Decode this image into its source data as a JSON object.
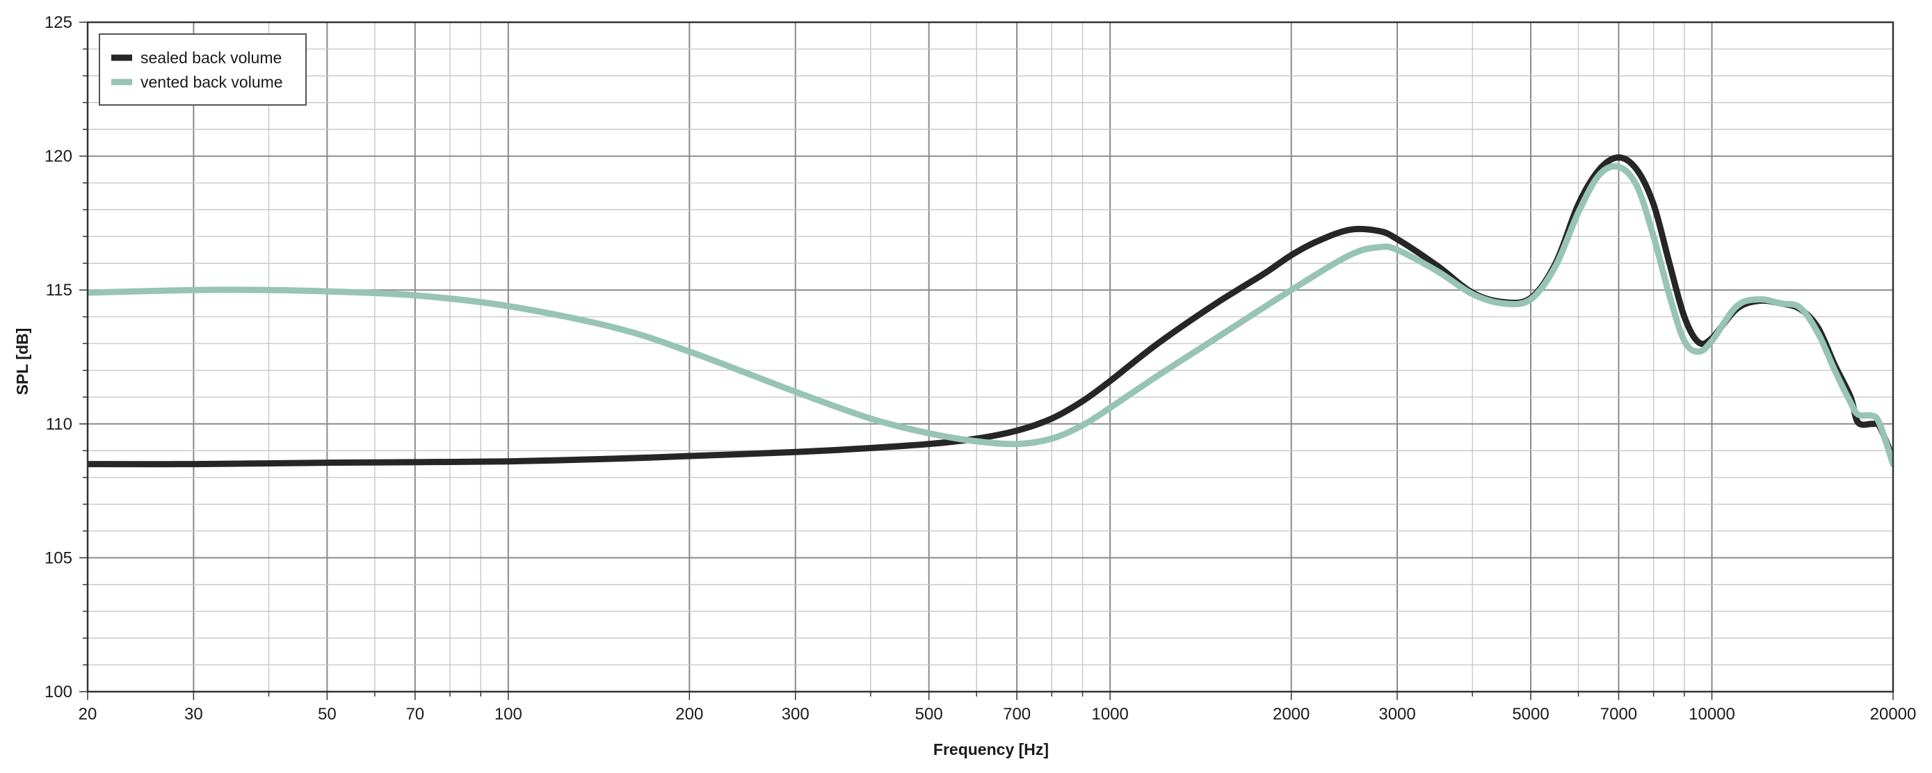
{
  "chart_data": {
    "type": "line",
    "xlabel": "Frequency [Hz]",
    "ylabel": "SPL [dB]",
    "x_scale": "log",
    "xlim": [
      20,
      20000
    ],
    "ylim": [
      100,
      125
    ],
    "grid": true,
    "legend_position": "top-left",
    "x_ticks": [
      20,
      30,
      50,
      70,
      100,
      200,
      300,
      500,
      700,
      1000,
      2000,
      3000,
      5000,
      7000,
      10000,
      20000
    ],
    "x_tick_labels": [
      "20",
      "30",
      "50",
      "70",
      "100",
      "200",
      "300",
      "500",
      "700",
      "1000",
      "2000",
      "3000",
      "5000",
      "7000",
      "10000",
      "20000"
    ],
    "y_ticks": [
      100,
      105,
      110,
      115,
      120,
      125
    ],
    "y_tick_labels": [
      "100",
      "105",
      "110",
      "115",
      "120",
      "125"
    ],
    "series": [
      {
        "name": "sealed back volume",
        "color": "#262626",
        "points": [
          [
            20,
            108.5
          ],
          [
            30,
            108.5
          ],
          [
            50,
            108.55
          ],
          [
            70,
            108.57
          ],
          [
            100,
            108.6
          ],
          [
            150,
            108.7
          ],
          [
            200,
            108.8
          ],
          [
            300,
            108.95
          ],
          [
            400,
            109.1
          ],
          [
            500,
            109.25
          ],
          [
            600,
            109.45
          ],
          [
            700,
            109.75
          ],
          [
            800,
            110.2
          ],
          [
            900,
            110.85
          ],
          [
            1000,
            111.6
          ],
          [
            1200,
            113.0
          ],
          [
            1500,
            114.5
          ],
          [
            1800,
            115.6
          ],
          [
            2000,
            116.3
          ],
          [
            2200,
            116.8
          ],
          [
            2500,
            117.25
          ],
          [
            2800,
            117.2
          ],
          [
            3000,
            116.9
          ],
          [
            3500,
            115.9
          ],
          [
            4000,
            114.9
          ],
          [
            4500,
            114.55
          ],
          [
            5000,
            114.7
          ],
          [
            5500,
            116.0
          ],
          [
            6000,
            118.2
          ],
          [
            6500,
            119.5
          ],
          [
            7000,
            119.95
          ],
          [
            7500,
            119.5
          ],
          [
            8000,
            118.2
          ],
          [
            8500,
            116.0
          ],
          [
            9000,
            114.0
          ],
          [
            9500,
            113.05
          ],
          [
            10000,
            113.2
          ],
          [
            11000,
            114.3
          ],
          [
            12000,
            114.6
          ],
          [
            13000,
            114.5
          ],
          [
            14000,
            114.3
          ],
          [
            15000,
            113.6
          ],
          [
            16000,
            112.2
          ],
          [
            17000,
            111.0
          ],
          [
            17500,
            110.05
          ],
          [
            18500,
            110.0
          ],
          [
            19000,
            109.9
          ],
          [
            20000,
            108.7
          ]
        ]
      },
      {
        "name": "vented back volume",
        "color": "#97c4b4",
        "points": [
          [
            20,
            114.9
          ],
          [
            30,
            115.0
          ],
          [
            40,
            115.0
          ],
          [
            50,
            114.95
          ],
          [
            70,
            114.8
          ],
          [
            100,
            114.4
          ],
          [
            150,
            113.6
          ],
          [
            200,
            112.7
          ],
          [
            300,
            111.2
          ],
          [
            400,
            110.2
          ],
          [
            500,
            109.65
          ],
          [
            600,
            109.35
          ],
          [
            700,
            109.25
          ],
          [
            800,
            109.45
          ],
          [
            900,
            109.95
          ],
          [
            1000,
            110.6
          ],
          [
            1200,
            111.8
          ],
          [
            1500,
            113.2
          ],
          [
            2000,
            115.0
          ],
          [
            2500,
            116.3
          ],
          [
            2800,
            116.6
          ],
          [
            3000,
            116.5
          ],
          [
            3500,
            115.7
          ],
          [
            4000,
            114.85
          ],
          [
            4500,
            114.5
          ],
          [
            5000,
            114.65
          ],
          [
            5500,
            115.9
          ],
          [
            6000,
            117.9
          ],
          [
            6500,
            119.3
          ],
          [
            7000,
            119.6
          ],
          [
            7500,
            118.9
          ],
          [
            8000,
            117.0
          ],
          [
            8500,
            114.8
          ],
          [
            9000,
            113.1
          ],
          [
            9500,
            112.7
          ],
          [
            10000,
            113.1
          ],
          [
            11000,
            114.4
          ],
          [
            12000,
            114.65
          ],
          [
            13000,
            114.5
          ],
          [
            14000,
            114.35
          ],
          [
            15000,
            113.4
          ],
          [
            16000,
            112.0
          ],
          [
            17000,
            110.8
          ],
          [
            17500,
            110.35
          ],
          [
            18500,
            110.3
          ],
          [
            19000,
            110.0
          ],
          [
            20000,
            108.5
          ]
        ]
      }
    ]
  }
}
